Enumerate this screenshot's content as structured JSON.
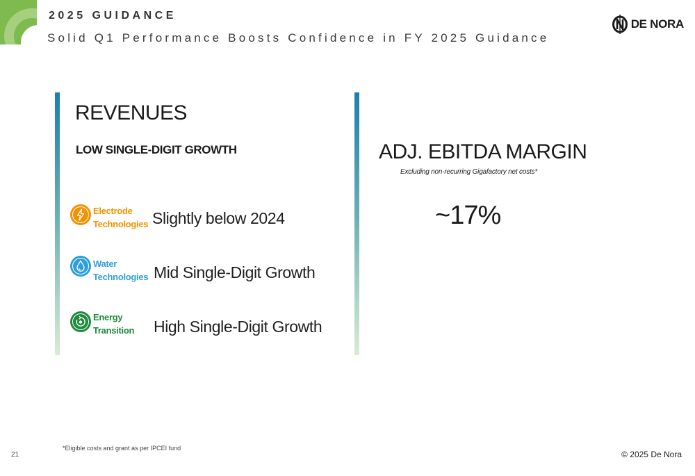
{
  "header": {
    "kicker": "2025 GUIDANCE",
    "subtitle": "Solid Q1 Performance Boosts Confidence in FY 2025 Guidance",
    "logo_text": "DE NORA"
  },
  "revenues": {
    "title": "REVENUES",
    "subtitle": "LOW SINGLE-DIGIT GROWTH",
    "segments": [
      {
        "name_line1": "Electrode",
        "name_line2": "Technologies",
        "guidance": "Slightly below 2024",
        "icon": "lightning-icon",
        "color": "#f39200"
      },
      {
        "name_line1": "Water",
        "name_line2": "Technologies",
        "guidance": "Mid Single-Digit Growth",
        "icon": "water-drop-icon",
        "color": "#2f9fd8"
      },
      {
        "name_line1": "Energy",
        "name_line2": "Transition",
        "guidance": "High Single-Digit Growth",
        "icon": "energy-cycle-icon",
        "color": "#1e8a3c"
      }
    ]
  },
  "ebitda": {
    "title": "ADJ. EBITDA MARGIN",
    "note": "Excluding non-recurring Gigafactory net costs*",
    "value": "~17%"
  },
  "footer": {
    "footnote": "*Eligible costs and grant as per IPCEI fund",
    "page_number": "21",
    "copyright": "© 2025 De Nora"
  },
  "colors": {
    "accent_green": "#7fba4f",
    "bar_top": "#1b7fae",
    "bar_bottom": "#d8ecd2"
  }
}
